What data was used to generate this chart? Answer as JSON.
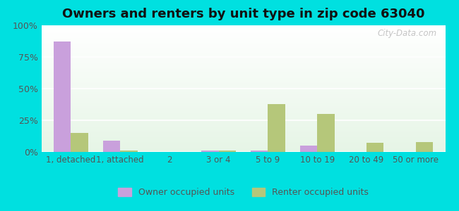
{
  "title": "Owners and renters by unit type in zip code 63040",
  "categories": [
    "1, detached",
    "1, attached",
    "2",
    "3 or 4",
    "5 to 9",
    "10 to 19",
    "20 to 49",
    "50 or more"
  ],
  "owner_values": [
    87,
    9,
    0,
    1,
    1,
    5,
    0,
    0
  ],
  "renter_values": [
    15,
    1,
    0,
    1,
    38,
    30,
    7,
    8
  ],
  "owner_color": "#c9a0dc",
  "renter_color": "#b5c77a",
  "background_color": "#00e0e0",
  "title_fontsize": 13,
  "legend_labels": [
    "Owner occupied units",
    "Renter occupied units"
  ],
  "ylim": [
    0,
    100
  ],
  "yticks": [
    0,
    25,
    50,
    75,
    100
  ],
  "ytick_labels": [
    "0%",
    "25%",
    "50%",
    "75%",
    "100%"
  ],
  "bar_width": 0.35,
  "watermark": "City-Data.com"
}
